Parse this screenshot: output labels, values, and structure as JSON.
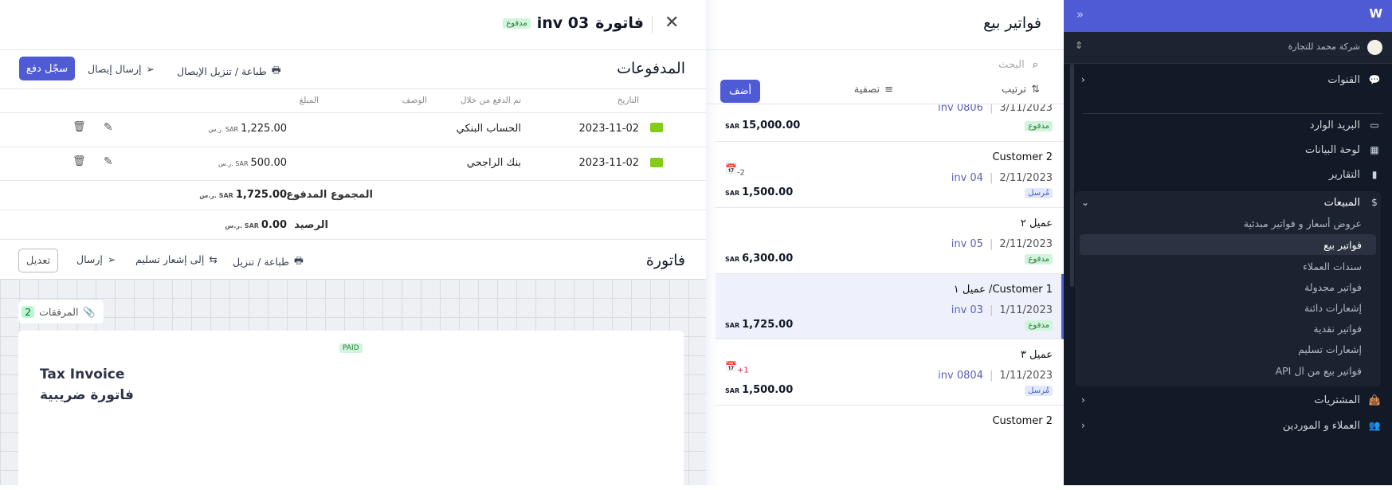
{
  "sidebar": {
    "logo": "W",
    "collapse_icon": "double-chevron-icon",
    "company": "شركة محمد للتجارة",
    "items": [
      {
        "label": "القنوات",
        "icon": "chat-icon"
      },
      {
        "label": "البريد الوارد",
        "icon": "inbox-icon"
      },
      {
        "label": "لوحة البيانات",
        "icon": "dashboard-icon"
      },
      {
        "label": "التقارير",
        "icon": "bar-chart-icon"
      },
      {
        "label": "المبيعات",
        "icon": "dollar-icon"
      },
      {
        "label": "المشتريات",
        "icon": "bag-icon"
      },
      {
        "label": "العملاء و الموردين",
        "icon": "users-icon"
      }
    ],
    "sales_sub": [
      "عروض أسعار و فواتير مبدئية",
      "فواتير بيع",
      "سندات العملاء",
      "فواتير مجدولة",
      "إشعارات دائنة",
      "فواتير نقدية",
      "إشعارات تسليم",
      "فواتير بيع من ال API"
    ],
    "active_sub": "فواتير بيع"
  },
  "list": {
    "title": "فواتير بيع",
    "search_placeholder": "البحث",
    "sort": "ترتيب",
    "filter": "تصفية",
    "add": "أضف",
    "rows": [
      {
        "customer": "",
        "date": "3/11/2023",
        "inv": "inv 0806",
        "status": "مدفوع",
        "amount": "15,000.00",
        "currency": "SAR"
      },
      {
        "customer": "Customer 2",
        "date": "2/11/2023",
        "inv": "inv 04",
        "status": "مُرسل",
        "amount": "1,500.00",
        "currency": "SAR",
        "due": "-2"
      },
      {
        "customer": "عميل ٢",
        "date": "2/11/2023",
        "inv": "inv 05",
        "status": "مدفوع",
        "amount": "6,300.00",
        "currency": "SAR"
      },
      {
        "customer": "Customer 1/ عميل ١",
        "date": "1/11/2023",
        "inv": "inv 03",
        "status": "مدفوع",
        "amount": "1,725.00",
        "currency": "SAR"
      },
      {
        "customer": "عميل ٣",
        "date": "1/11/2023",
        "inv": "inv 0804",
        "status": "مُرسل",
        "amount": "1,500.00",
        "currency": "SAR",
        "due": "+1"
      },
      {
        "customer": "Customer 2",
        "date": "",
        "inv": "",
        "status": "",
        "amount": "",
        "currency": ""
      }
    ]
  },
  "detail": {
    "title": "فاتورة",
    "number": "inv 03",
    "status": "مدفوع",
    "payments": {
      "title": "المدفوعات",
      "print": "طباعة / تنزيل الإيصال",
      "send": "إرسال إيصال",
      "record": "سجّل دفع",
      "headers": [
        "التاريخ",
        "تم الدفع من خلال",
        "الوصف",
        "المبلغ"
      ],
      "rows": [
        {
          "date": "2023-11-02",
          "via": "الحساب البنكي",
          "desc": "",
          "amount": "1,225.00",
          "cur": "ر.س. SAR"
        },
        {
          "date": "2023-11-02",
          "via": "بنك الراجحي",
          "desc": "",
          "amount": "500.00",
          "cur": "ر.س. SAR"
        }
      ],
      "total_label": "المجموع المدفوع",
      "total": "1,725.00",
      "balance_label": "الرصيد",
      "balance": "0.00",
      "cur": "ر.س. SAR"
    },
    "invoice": {
      "title": "فاتورة",
      "print": "طباعة / تنزيل",
      "delivery": "إلى إشعار تسليم",
      "send": "إرسال",
      "edit": "تعديل",
      "attachments": "المرفقات",
      "attachments_count": "2",
      "paid_stamp": "PAID",
      "doc_title_en": "Tax Invoice",
      "doc_title_ar": "فاتورة ضريبية"
    }
  },
  "colors": {
    "accent": "#4f5bd5",
    "paid_bg": "#d1f5dc",
    "sent_bg": "#e1e8fb",
    "sidebar": "#131a27",
    "book": "#84cc16",
    "due_late": "#e11d48"
  }
}
